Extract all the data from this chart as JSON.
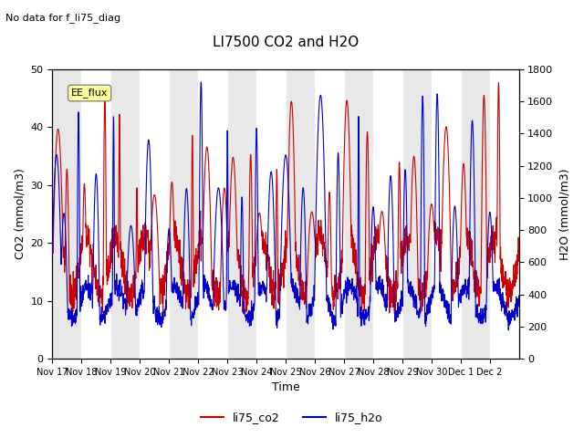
{
  "title": "LI7500 CO2 and H2O",
  "subtitle": "No data for f_li75_diag",
  "xlabel": "Time",
  "ylabel_left": "CO2 (mmol/m3)",
  "ylabel_right": "H2O (mmol/m3)",
  "ylim_left": [
    0,
    50
  ],
  "ylim_right": [
    0,
    1800
  ],
  "xtick_labels": [
    "Nov 17",
    "Nov 18",
    "Nov 19",
    "Nov 20",
    "Nov 21",
    "Nov 22",
    "Nov 23",
    "Nov 24",
    "Nov 25",
    "Nov 26",
    "Nov 27",
    "Nov 28",
    "Nov 29",
    "Nov 30",
    "Dec 1",
    "Dec 2"
  ],
  "n_days": 16,
  "color_co2": "#cc0000",
  "color_h2o": "#0000cc",
  "legend_label_co2": "li75_co2",
  "legend_label_h2o": "li75_h2o",
  "band_color": "#e8e8e8",
  "annotation_box_label": "EE_flux",
  "annotation_box_color": "#ffff99",
  "annotation_box_edge": "#888888",
  "bg_color": "#f5f5f5"
}
